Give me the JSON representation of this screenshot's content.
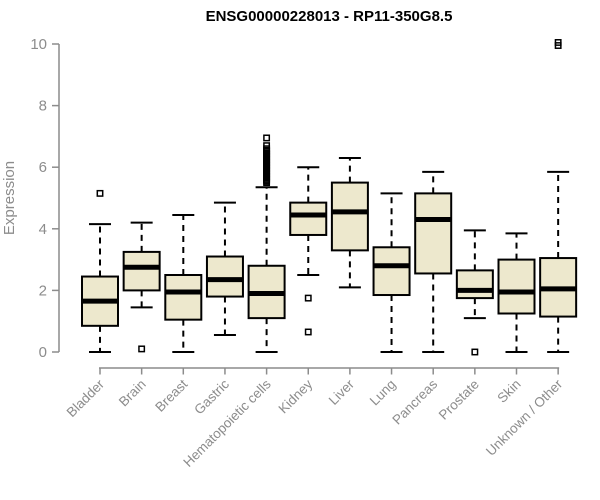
{
  "title": "ENSG00000228013 - RP11-350G8.5",
  "chart_data": {
    "type": "box",
    "title": "ENSG00000228013 - RP11-350G8.5",
    "ylabel": "Expression",
    "xlabel": "",
    "ylim": [
      0,
      10
    ],
    "yticks": [
      0,
      2,
      4,
      6,
      8,
      10
    ],
    "grid": false,
    "legend": "none",
    "categories": [
      "Bladder",
      "Brain",
      "Breast",
      "Gastric",
      "Hematopoietic cells",
      "Kidney",
      "Liver",
      "Lung",
      "Pancreas",
      "Prostate",
      "Skin",
      "Unknown / Other"
    ],
    "boxes": [
      {
        "category": "Bladder",
        "whisker_low": 0.0,
        "q1": 0.85,
        "median": 1.65,
        "q3": 2.45,
        "whisker_high": 4.15,
        "outliers": [
          5.15
        ]
      },
      {
        "category": "Brain",
        "whisker_low": 1.45,
        "q1": 2.0,
        "median": 2.75,
        "q3": 3.25,
        "whisker_high": 4.2,
        "outliers": [
          0.1
        ]
      },
      {
        "category": "Breast",
        "whisker_low": 0.0,
        "q1": 1.05,
        "median": 1.95,
        "q3": 2.5,
        "whisker_high": 4.45,
        "outliers": []
      },
      {
        "category": "Gastric",
        "whisker_low": 0.55,
        "q1": 1.8,
        "median": 2.35,
        "q3": 3.1,
        "whisker_high": 4.85,
        "outliers": []
      },
      {
        "category": "Hematopoietic cells",
        "whisker_low": 0.0,
        "q1": 1.1,
        "median": 1.9,
        "q3": 2.8,
        "whisker_high": 5.35,
        "outliers": [
          5.5,
          5.55,
          5.6,
          5.65,
          5.7,
          5.75,
          5.8,
          5.85,
          5.9,
          5.95,
          6.0,
          6.05,
          6.1,
          6.15,
          6.2,
          6.25,
          6.3,
          6.35,
          6.4,
          6.45,
          6.5,
          6.55,
          6.6,
          6.7,
          6.95
        ]
      },
      {
        "category": "Kidney",
        "whisker_low": 2.5,
        "q1": 3.8,
        "median": 4.45,
        "q3": 4.85,
        "whisker_high": 6.0,
        "outliers": [
          1.75,
          0.65
        ]
      },
      {
        "category": "Liver",
        "whisker_low": 2.1,
        "q1": 3.3,
        "median": 4.55,
        "q3": 5.5,
        "whisker_high": 6.3,
        "outliers": []
      },
      {
        "category": "Lung",
        "whisker_low": 0.0,
        "q1": 1.85,
        "median": 2.8,
        "q3": 3.4,
        "whisker_high": 5.15,
        "outliers": []
      },
      {
        "category": "Pancreas",
        "whisker_low": 0.0,
        "q1": 2.55,
        "median": 4.3,
        "q3": 5.15,
        "whisker_high": 5.85,
        "outliers": []
      },
      {
        "category": "Prostate",
        "whisker_low": 1.1,
        "q1": 1.75,
        "median": 2.0,
        "q3": 2.65,
        "whisker_high": 3.95,
        "outliers": [
          0.0
        ]
      },
      {
        "category": "Skin",
        "whisker_low": 0.0,
        "q1": 1.25,
        "median": 1.95,
        "q3": 3.0,
        "whisker_high": 3.85,
        "outliers": []
      },
      {
        "category": "Unknown / Other",
        "whisker_low": 0.0,
        "q1": 1.15,
        "median": 2.05,
        "q3": 3.05,
        "whisker_high": 5.85,
        "outliers": [
          9.95,
          10.05
        ]
      }
    ],
    "colors": {
      "box_fill": "#EDE8CD",
      "box_stroke": "#000000",
      "median": "#000000",
      "axis": "#8C8C8C",
      "tick_label": "#8C8C8C",
      "title": "#000000",
      "background": "#FFFFFF"
    }
  }
}
